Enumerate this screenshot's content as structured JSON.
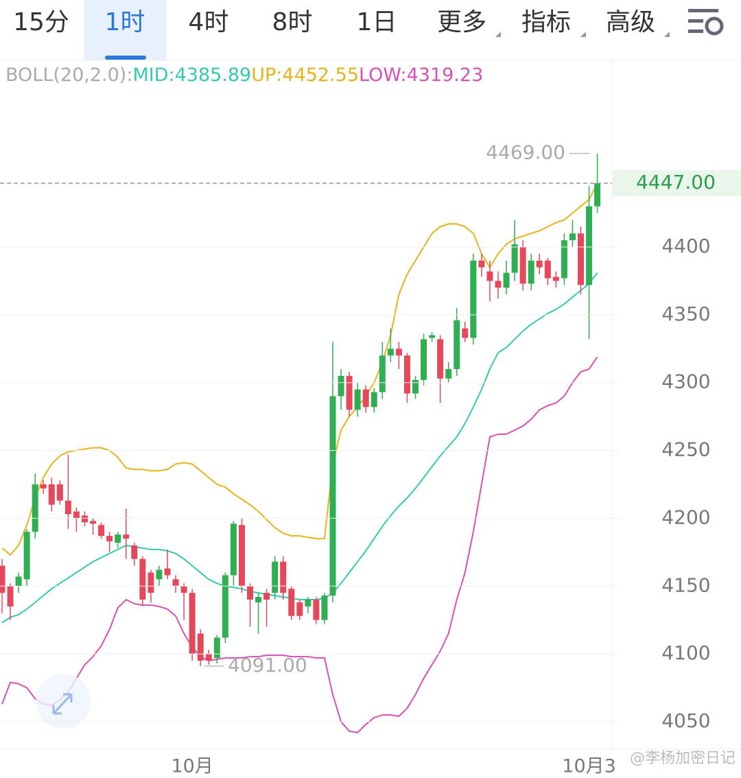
{
  "tabs": [
    "15分",
    "1时",
    "4时",
    "8时",
    "1日",
    "更多",
    "指标",
    "高级"
  ],
  "watermark": "@李杨加密日记",
  "chart_data": {
    "type": "candlestick",
    "legend_label": "BOLL(20,2.0):",
    "categories": [
      null,
      null,
      null,
      null,
      null,
      null,
      null,
      null,
      null,
      null,
      null,
      null,
      null,
      null,
      null,
      null,
      null,
      null,
      null,
      null,
      null,
      null,
      null,
      "10月",
      null,
      null,
      null,
      null,
      null,
      null,
      null,
      null,
      null,
      null,
      null,
      null,
      null,
      null,
      null,
      null,
      null,
      null,
      null,
      null,
      null,
      null,
      null,
      null,
      null,
      null,
      null,
      null,
      null,
      null,
      null,
      null,
      null,
      null,
      null,
      null,
      null,
      null,
      null,
      null,
      null,
      null,
      null,
      null,
      null,
      null,
      null,
      "10月3",
      null
    ],
    "open": [
      4165,
      4150,
      4150,
      4155,
      4190,
      4225,
      4225,
      4225,
      4213,
      4205,
      4202,
      4198,
      4195,
      4187,
      4182,
      4188,
      4180,
      4170,
      4160,
      4155,
      4163,
      4155,
      4150,
      4145,
      4115,
      4100,
      4097,
      4112,
      4158,
      4195,
      4150,
      4138,
      4145,
      4145,
      4168,
      4148,
      4138,
      4135,
      4140,
      4125,
      4143,
      4290,
      4305,
      4280,
      4295,
      4282,
      4293,
      4320,
      4325,
      4320,
      4292,
      4302,
      4333,
      4332,
      4303,
      4310,
      4340,
      4333,
      4390,
      4382,
      4375,
      4370,
      4381,
      4400,
      4373,
      4390,
      4390,
      4378,
      4377,
      4405,
      4410,
      4372,
      4430
    ],
    "high": [
      4170,
      4152,
      4160,
      4192,
      4233,
      4228,
      4230,
      4228,
      4247,
      4208,
      4205,
      4200,
      4197,
      4190,
      4190,
      4207,
      4182,
      4172,
      4162,
      4165,
      4177,
      4158,
      4152,
      4148,
      4118,
      4103,
      4114,
      4160,
      4198,
      4200,
      4152,
      4145,
      4148,
      4172,
      4172,
      4150,
      4140,
      4142,
      4142,
      4145,
      4330,
      4310,
      4308,
      4300,
      4298,
      4296,
      4330,
      4340,
      4330,
      4322,
      4305,
      4336,
      4337,
      4335,
      4315,
      4355,
      4345,
      4395,
      4395,
      4390,
      4382,
      4390,
      4420,
      4405,
      4395,
      4395,
      4392,
      4382,
      4410,
      4420,
      4415,
      4445,
      4469
    ],
    "low": [
      4130,
      4125,
      4145,
      4150,
      4185,
      4218,
      4205,
      4210,
      4192,
      4190,
      4194,
      4188,
      4185,
      4175,
      4178,
      4170,
      4165,
      4135,
      4138,
      4150,
      4155,
      4145,
      4125,
      4095,
      4091,
      4092,
      4093,
      4108,
      4150,
      4145,
      4120,
      4115,
      4120,
      4140,
      4140,
      4125,
      4125,
      4130,
      4122,
      4122,
      4138,
      4280,
      4275,
      4275,
      4278,
      4278,
      4288,
      4315,
      4310,
      4285,
      4288,
      4298,
      4330,
      4285,
      4300,
      4305,
      4330,
      4328,
      4378,
      4360,
      4362,
      4365,
      4375,
      4368,
      4368,
      4380,
      4372,
      4370,
      4372,
      4400,
      4365,
      4332,
      4425
    ],
    "close": [
      4145,
      4135,
      4157,
      4190,
      4225,
      4222,
      4210,
      4213,
      4203,
      4200,
      4197,
      4196,
      4187,
      4183,
      4188,
      4185,
      4170,
      4140,
      4145,
      4162,
      4158,
      4150,
      4145,
      4100,
      4095,
      4095,
      4112,
      4158,
      4196,
      4150,
      4140,
      4142,
      4140,
      4168,
      4145,
      4128,
      4128,
      4140,
      4125,
      4143,
      4290,
      4305,
      4280,
      4295,
      4282,
      4293,
      4320,
      4325,
      4320,
      4292,
      4302,
      4332,
      4335,
      4303,
      4310,
      4346,
      4333,
      4390,
      4385,
      4375,
      4370,
      4381,
      4402,
      4373,
      4390,
      4385,
      4377,
      4375,
      4405,
      4410,
      4372,
      4430,
      4447
    ],
    "up_color": "#2fae52",
    "down_color": "#e5485a",
    "bands": [
      {
        "legend": "MID:4385.89",
        "color": "#34c9b0",
        "values": [
          4123,
          4127,
          4129,
          4133,
          4138,
          4143,
          4148,
          4152,
          4156,
          4160,
          4164,
          4168,
          4171,
          4174,
          4177,
          4180,
          4179,
          4178,
          4177,
          4177,
          4176,
          4174,
          4170,
          4165,
          4160,
          4155,
          4152,
          4150,
          4149,
          4148,
          4146,
          4145,
          4144,
          4143,
          4142,
          4141,
          4140,
          4140,
          4140,
          4141,
          4145,
          4152,
          4160,
          4168,
          4176,
          4185,
          4194,
          4202,
          4209,
          4215,
          4222,
          4230,
          4238,
          4246,
          4253,
          4260,
          4270,
          4282,
          4295,
          4310,
          4322,
          4326,
          4332,
          4338,
          4343,
          4347,
          4351,
          4354,
          4358,
          4363,
          4368,
          4373,
          4381
        ]
      },
      {
        "legend": "UP:4452.55",
        "color": "#e8b21a",
        "values": [
          4178,
          4173,
          4180,
          4195,
          4215,
          4230,
          4240,
          4246,
          4249,
          4250,
          4251,
          4252,
          4252,
          4250,
          4245,
          4237,
          4236,
          4236,
          4235,
          4235,
          4236,
          4240,
          4241,
          4240,
          4235,
          4230,
          4225,
          4223,
          4218,
          4214,
          4210,
          4205,
          4199,
          4193,
          4189,
          4187,
          4187,
          4186,
          4185,
          4185,
          4240,
          4265,
          4275,
          4282,
          4290,
          4300,
          4315,
          4335,
          4365,
          4380,
          4390,
          4400,
          4410,
          4415,
          4417,
          4417,
          4415,
          4410,
          4395,
          4385,
          4395,
          4402,
          4406,
          4408,
          4410,
          4412,
          4415,
          4418,
          4420,
          4425,
          4430,
          4435,
          4447
        ]
      },
      {
        "legend": "LOW:4319.23",
        "color": "#d84fb6",
        "values": [
          4063,
          4079,
          4078,
          4075,
          4067,
          4063,
          4062,
          4066,
          4072,
          4082,
          4092,
          4098,
          4106,
          4118,
          4134,
          4140,
          4137,
          4136,
          4136,
          4135,
          4133,
          4128,
          4115,
          4105,
          4098,
          4095,
          4096,
          4097,
          4097,
          4097,
          4098,
          4098,
          4099,
          4099,
          4099,
          4098,
          4098,
          4098,
          4097,
          4097,
          4070,
          4050,
          4043,
          4042,
          4048,
          4053,
          4055,
          4055,
          4054,
          4060,
          4070,
          4082,
          4092,
          4102,
          4115,
          4140,
          4160,
          4190,
          4225,
          4260,
          4262,
          4262,
          4265,
          4268,
          4273,
          4280,
          4283,
          4285,
          4290,
          4300,
          4308,
          4310,
          4319
        ]
      }
    ],
    "max_label": {
      "value": 4469,
      "label": "4469.00"
    },
    "min_label": {
      "value": 4091,
      "label": "4091.00"
    },
    "last_price": {
      "value": 4447,
      "label": "4447.00"
    },
    "ylim": [
      4030,
      4538
    ],
    "yticks": [
      4050,
      4100,
      4150,
      4200,
      4250,
      4300,
      4350,
      4400
    ],
    "grid": true
  }
}
